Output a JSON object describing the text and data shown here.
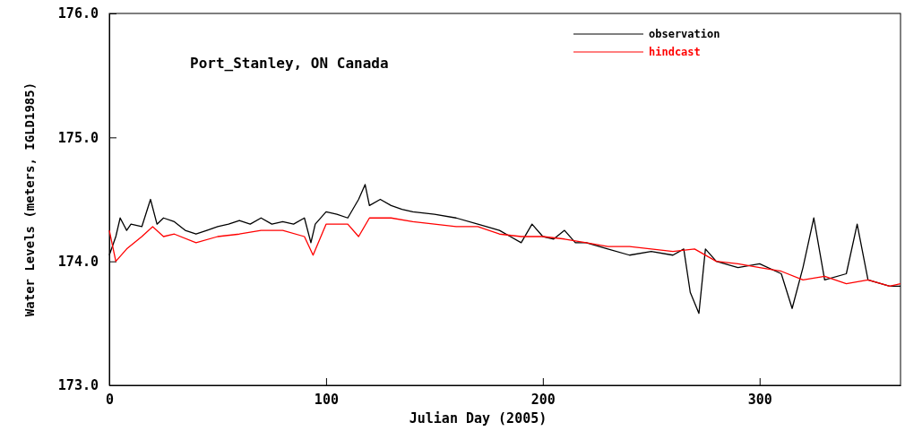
{
  "chart_data": {
    "type": "line",
    "xlabel": "Julian Day (2005)",
    "ylabel": "Water Levels (meters, IGLD1985)",
    "annotations": [
      "Port_Stanley, ON Canada"
    ],
    "xlim": [
      0,
      365
    ],
    "xticks": [
      0,
      100,
      200,
      300
    ],
    "ylim": [
      173,
      176
    ],
    "yticks": [
      {
        "value": 173,
        "label": "173.0"
      },
      {
        "value": 174,
        "label": "174.0"
      },
      {
        "value": 175,
        "label": "175.0"
      },
      {
        "value": 176,
        "label": "176.0"
      }
    ],
    "legend": "top right",
    "grid": false,
    "series": [
      {
        "name": "observation",
        "color": "#000000",
        "x": [
          0,
          3,
          5,
          8,
          10,
          15,
          19,
          22,
          25,
          30,
          35,
          40,
          45,
          50,
          55,
          60,
          65,
          70,
          75,
          80,
          85,
          90,
          93,
          95,
          100,
          105,
          110,
          115,
          118,
          120,
          125,
          130,
          135,
          140,
          150,
          160,
          170,
          180,
          185,
          190,
          195,
          200,
          205,
          210,
          215,
          220,
          230,
          240,
          250,
          260,
          265,
          268,
          272,
          275,
          280,
          290,
          300,
          310,
          315,
          320,
          325,
          330,
          340,
          345,
          350,
          360,
          365
        ],
        "values": [
          174.05,
          174.2,
          174.35,
          174.25,
          174.3,
          174.28,
          174.5,
          174.3,
          174.35,
          174.32,
          174.25,
          174.22,
          174.25,
          174.28,
          174.3,
          174.33,
          174.3,
          174.35,
          174.3,
          174.32,
          174.3,
          174.35,
          174.15,
          174.3,
          174.4,
          174.38,
          174.35,
          174.5,
          174.62,
          174.45,
          174.5,
          174.45,
          174.42,
          174.4,
          174.38,
          174.35,
          174.3,
          174.25,
          174.2,
          174.15,
          174.3,
          174.2,
          174.18,
          174.25,
          174.15,
          174.15,
          174.1,
          174.05,
          174.08,
          174.05,
          174.1,
          173.75,
          173.58,
          174.1,
          174,
          173.95,
          173.98,
          173.9,
          173.62,
          173.95,
          174.35,
          173.85,
          173.9,
          174.3,
          173.85,
          173.8,
          173.8
        ]
      },
      {
        "name": "hindcast",
        "color": "#ff0000",
        "x": [
          0,
          3,
          8,
          15,
          20,
          25,
          30,
          40,
          50,
          60,
          70,
          80,
          90,
          94,
          100,
          110,
          115,
          120,
          130,
          140,
          150,
          160,
          170,
          180,
          190,
          200,
          210,
          220,
          230,
          240,
          250,
          260,
          270,
          280,
          290,
          300,
          310,
          320,
          330,
          340,
          350,
          360,
          365
        ],
        "values": [
          174.25,
          174,
          174.1,
          174.2,
          174.28,
          174.2,
          174.22,
          174.15,
          174.2,
          174.22,
          174.25,
          174.25,
          174.2,
          174.05,
          174.3,
          174.3,
          174.2,
          174.35,
          174.35,
          174.32,
          174.3,
          174.28,
          174.28,
          174.22,
          174.2,
          174.2,
          174.18,
          174.15,
          174.12,
          174.12,
          174.1,
          174.08,
          174.1,
          174,
          173.98,
          173.95,
          173.92,
          173.85,
          173.88,
          173.82,
          173.85,
          173.8,
          173.82
        ]
      }
    ]
  }
}
